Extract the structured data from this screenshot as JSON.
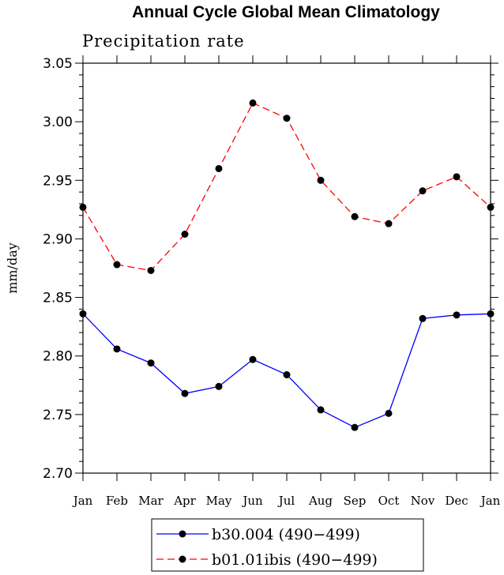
{
  "chart_data": {
    "type": "line",
    "title": "Annual Cycle Global Mean Climatology",
    "subtitle": "Precipitation rate",
    "xlabel": "",
    "ylabel": "mm/day",
    "categories": [
      "Jan",
      "Feb",
      "Mar",
      "Apr",
      "May",
      "Jun",
      "Jul",
      "Aug",
      "Sep",
      "Oct",
      "Nov",
      "Dec",
      "Jan"
    ],
    "ylim": [
      2.7,
      3.05
    ],
    "yticks": [
      "2.70",
      "2.75",
      "2.80",
      "2.85",
      "2.90",
      "2.95",
      "3.00",
      "3.05"
    ],
    "grid": false,
    "legend_position": "bottom-center",
    "series": [
      {
        "name": "b30.004 (490−499)",
        "color": "#0000ff",
        "dash": "solid",
        "values": [
          2.836,
          2.806,
          2.794,
          2.768,
          2.774,
          2.797,
          2.784,
          2.754,
          2.739,
          2.751,
          2.832,
          2.835,
          2.836
        ]
      },
      {
        "name": "b01.01ibis (490−499)",
        "color": "#ff0000",
        "dash": "dashed",
        "values": [
          2.927,
          2.878,
          2.873,
          2.904,
          2.96,
          3.016,
          3.003,
          2.95,
          2.919,
          2.913,
          2.941,
          2.953,
          2.927
        ]
      }
    ]
  }
}
